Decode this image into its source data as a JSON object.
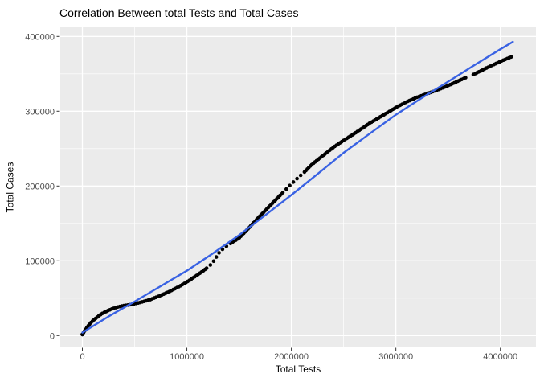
{
  "chart_data": {
    "type": "scatter",
    "title": "Correlation Between total Tests and Total Cases",
    "xlabel": "Total Tests",
    "ylabel": "Total Cases",
    "x_ticks": [
      0,
      1000000,
      2000000,
      3000000,
      4000000
    ],
    "y_ticks": [
      0,
      100000,
      200000,
      300000,
      400000
    ],
    "x_minor_ticks": [
      500000,
      1500000,
      2500000,
      3500000
    ],
    "y_minor_ticks": [
      50000,
      150000,
      250000,
      350000
    ],
    "xlim": [
      -211000,
      4340000
    ],
    "ylim": [
      -15800,
      413300
    ],
    "grid": "on",
    "panel_background": "#EBEBEB",
    "grid_color": "#FFFFFF",
    "tick_label_color": "#4D4D4D",
    "tick_mark_color": "#333333",
    "series": [
      {
        "name": "observed-points",
        "kind": "points",
        "color": "#000000",
        "points": [
          [
            0,
            1500
          ],
          [
            20000,
            6000
          ],
          [
            50000,
            12000
          ],
          [
            80000,
            17000
          ],
          [
            110000,
            21000
          ],
          [
            150000,
            25500
          ],
          [
            190000,
            29500
          ],
          [
            240000,
            33000
          ],
          [
            290000,
            36000
          ],
          [
            340000,
            38300
          ],
          [
            390000,
            39800
          ],
          [
            440000,
            40900
          ],
          [
            490000,
            42200
          ],
          [
            540000,
            43800
          ],
          [
            590000,
            45700
          ],
          [
            650000,
            48100
          ],
          [
            700000,
            50900
          ],
          [
            760000,
            54300
          ],
          [
            820000,
            58000
          ],
          [
            880000,
            62200
          ],
          [
            940000,
            66700
          ],
          [
            1000000,
            71600
          ],
          [
            1060000,
            77200
          ],
          [
            1120000,
            83000
          ],
          [
            1180000,
            89000
          ],
          [
            1230000,
            95000
          ],
          [
            1260000,
            100000
          ],
          [
            1290000,
            107000
          ],
          [
            1320000,
            113000
          ],
          [
            1360000,
            117500
          ],
          [
            1400000,
            121500
          ],
          [
            1450000,
            126000
          ],
          [
            1500000,
            130500
          ],
          [
            1560000,
            139000
          ],
          [
            1630000,
            149500
          ],
          [
            1700000,
            160000
          ],
          [
            1770000,
            170000
          ],
          [
            1840000,
            180000
          ],
          [
            1910000,
            190000
          ],
          [
            1980000,
            200000
          ],
          [
            2050000,
            209500
          ],
          [
            2120000,
            218000
          ],
          [
            2190000,
            228000
          ],
          [
            2270000,
            237000
          ],
          [
            2350000,
            246000
          ],
          [
            2420000,
            253500
          ],
          [
            2500000,
            261000
          ],
          [
            2580000,
            268000
          ],
          [
            2660000,
            275500
          ],
          [
            2750000,
            284000
          ],
          [
            2840000,
            291500
          ],
          [
            2930000,
            299000
          ],
          [
            3020000,
            306500
          ],
          [
            3110000,
            313000
          ],
          [
            3200000,
            318500
          ],
          [
            3290000,
            323000
          ],
          [
            3380000,
            327500
          ],
          [
            3470000,
            332500
          ],
          [
            3560000,
            338000
          ],
          [
            3630000,
            342500
          ],
          [
            3670000,
            345000
          ],
          [
            3740000,
            349000
          ],
          [
            3800000,
            353000
          ],
          [
            3870000,
            358000
          ],
          [
            3940000,
            362500
          ],
          [
            4000000,
            366500
          ],
          [
            4060000,
            370000
          ],
          [
            4120000,
            373500
          ]
        ],
        "dot_gaps": [
          [
            3675000,
            3735000
          ]
        ],
        "dot_sparse": [
          [
            1200000,
            1380000
          ],
          [
            1880000,
            2100000
          ]
        ]
      },
      {
        "name": "smooth-line",
        "kind": "line",
        "color": "#3962E3",
        "points": [
          [
            0,
            4000
          ],
          [
            250000,
            25500
          ],
          [
            500000,
            45500
          ],
          [
            750000,
            66000
          ],
          [
            1000000,
            86700
          ],
          [
            1250000,
            110000
          ],
          [
            1500000,
            134400
          ],
          [
            1750000,
            161000
          ],
          [
            2000000,
            188000
          ],
          [
            2250000,
            216000
          ],
          [
            2500000,
            244400
          ],
          [
            2750000,
            270000
          ],
          [
            3000000,
            295300
          ],
          [
            3250000,
            318000
          ],
          [
            3500000,
            339600
          ],
          [
            3750000,
            361500
          ],
          [
            4000000,
            382900
          ],
          [
            4120000,
            392800
          ]
        ]
      }
    ]
  }
}
